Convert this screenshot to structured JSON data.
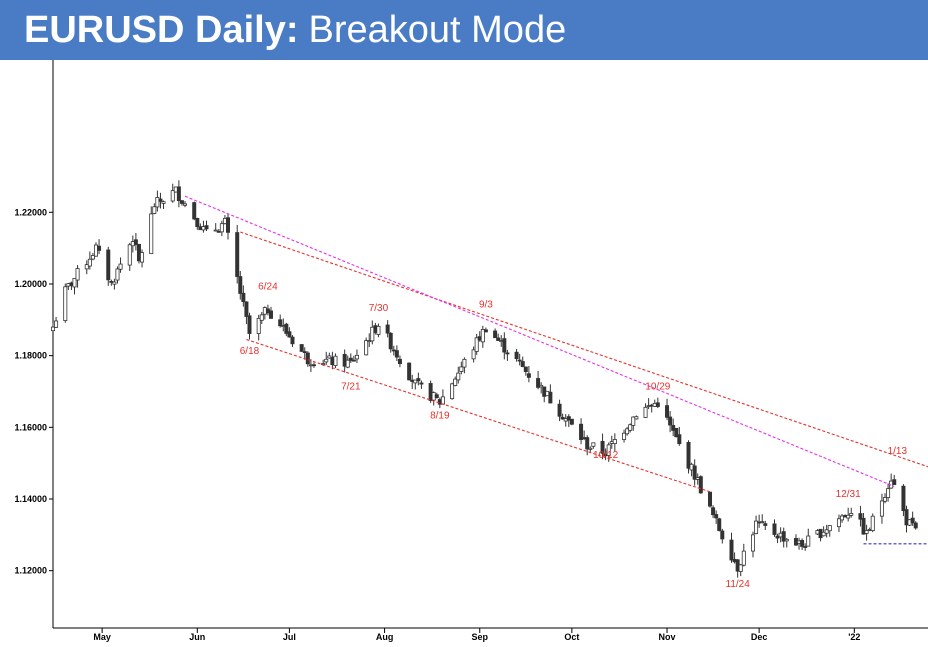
{
  "title": {
    "bold": "EURUSD Daily:",
    "rest": "Breakout Mode"
  },
  "colors": {
    "title_bg": "#4a7cc6",
    "title_text": "#ffffff",
    "up_candle": "#ffffff",
    "down_candle": "#333333",
    "candle_outline": "#333333",
    "channel_lines": "#e8312b",
    "trend_line": "#e830e8",
    "support_line": "#3333cc",
    "annotation": "#e8312b"
  },
  "chart_data": {
    "type": "candlestick",
    "y_ticks": [
      "1.22000",
      "1.20000",
      "1.18000",
      "1.16000",
      "1.14000",
      "1.12000"
    ],
    "y_tick_values": [
      1.22,
      1.2,
      1.18,
      1.16,
      1.14,
      1.12
    ],
    "ylim": [
      1.104,
      1.2625
    ],
    "x_months": [
      "May",
      "Jun",
      "Jul",
      "Aug",
      "Sep",
      "Oct",
      "Nov",
      "Dec",
      "'22"
    ],
    "x_month_dates": [
      "2021-05-01",
      "2021-06-01",
      "2021-07-01",
      "2021-08-01",
      "2021-09-01",
      "2021-10-01",
      "2021-11-01",
      "2021-12-01",
      "2022-01-01"
    ],
    "xlim": [
      "2021-04-15",
      "2022-01-25"
    ],
    "anchors": [
      {
        "date": "2021-04-15",
        "price": 1.188
      },
      {
        "date": "2021-04-19",
        "price": 1.198
      },
      {
        "date": "2021-04-29",
        "price": 1.21
      },
      {
        "date": "2021-05-04",
        "price": 1.2
      },
      {
        "date": "2021-05-11",
        "price": 1.213
      },
      {
        "date": "2021-05-13",
        "price": 1.206
      },
      {
        "date": "2021-05-18",
        "price": 1.222
      },
      {
        "date": "2021-05-25",
        "price": 1.226
      },
      {
        "date": "2021-06-04",
        "price": 1.214
      },
      {
        "date": "2021-06-10",
        "price": 1.217
      },
      {
        "date": "2021-06-18",
        "price": 1.186
      },
      {
        "date": "2021-06-24",
        "price": 1.193
      },
      {
        "date": "2021-07-07",
        "price": 1.179
      },
      {
        "date": "2021-07-21",
        "price": 1.178
      },
      {
        "date": "2021-07-30",
        "price": 1.189
      },
      {
        "date": "2021-08-11",
        "price": 1.172
      },
      {
        "date": "2021-08-19",
        "price": 1.167
      },
      {
        "date": "2021-09-03",
        "price": 1.188
      },
      {
        "date": "2021-09-21",
        "price": 1.171
      },
      {
        "date": "2021-10-06",
        "price": 1.155
      },
      {
        "date": "2021-10-12",
        "price": 1.153
      },
      {
        "date": "2021-10-22",
        "price": 1.164
      },
      {
        "date": "2021-10-29",
        "price": 1.167
      },
      {
        "date": "2021-11-05",
        "price": 1.155
      },
      {
        "date": "2021-11-11",
        "price": 1.145
      },
      {
        "date": "2021-11-15",
        "price": 1.137
      },
      {
        "date": "2021-11-24",
        "price": 1.121
      },
      {
        "date": "2021-11-30",
        "price": 1.133
      },
      {
        "date": "2021-12-10",
        "price": 1.129
      },
      {
        "date": "2021-12-15",
        "price": 1.127
      },
      {
        "date": "2021-12-31",
        "price": 1.137
      },
      {
        "date": "2022-01-05",
        "price": 1.13
      },
      {
        "date": "2022-01-13",
        "price": 1.146
      },
      {
        "date": "2022-01-18",
        "price": 1.134
      },
      {
        "date": "2022-01-21",
        "price": 1.131
      }
    ],
    "lines": [
      {
        "name": "channel-upper",
        "style": "dashed-red",
        "from": {
          "date": "2021-06-15",
          "price": 1.2145
        },
        "to": {
          "date": "2022-01-25",
          "price": 1.149
        }
      },
      {
        "name": "channel-lower",
        "style": "dashed-red",
        "from": {
          "date": "2021-06-17",
          "price": 1.1845
        },
        "to": {
          "date": "2021-11-15",
          "price": 1.142
        }
      },
      {
        "name": "trend-line",
        "style": "dashed-magenta",
        "from": {
          "date": "2021-05-28",
          "price": 1.2245
        },
        "to": {
          "date": "2022-01-14",
          "price": 1.1435
        }
      },
      {
        "name": "support-line",
        "style": "dashed-blue",
        "from": {
          "date": "2022-01-04",
          "price": 1.1275
        },
        "to": {
          "date": "2022-01-25",
          "price": 1.1275
        }
      }
    ],
    "annotations": [
      {
        "text": "6/24",
        "date": "2021-06-24",
        "price": 1.1985,
        "anchor": "middle"
      },
      {
        "text": "6/18",
        "date": "2021-06-18",
        "price": 1.1805,
        "anchor": "middle"
      },
      {
        "text": "7/30",
        "date": "2021-07-30",
        "price": 1.1925,
        "anchor": "middle"
      },
      {
        "text": "7/21",
        "date": "2021-07-21",
        "price": 1.1705,
        "anchor": "middle"
      },
      {
        "text": "9/3",
        "date": "2021-09-03",
        "price": 1.1935,
        "anchor": "middle"
      },
      {
        "text": "8/19",
        "date": "2021-08-19",
        "price": 1.1625,
        "anchor": "middle"
      },
      {
        "text": "10/29",
        "date": "2021-10-29",
        "price": 1.1705,
        "anchor": "middle"
      },
      {
        "text": "10/12",
        "date": "2021-10-12",
        "price": 1.1515,
        "anchor": "middle"
      },
      {
        "text": "1/13",
        "date": "2022-01-15",
        "price": 1.1525,
        "anchor": "middle"
      },
      {
        "text": "12/31",
        "date": "2021-12-30",
        "price": 1.1405,
        "anchor": "middle"
      },
      {
        "text": "11/24",
        "date": "2021-11-24",
        "price": 1.1155,
        "anchor": "middle"
      }
    ]
  }
}
